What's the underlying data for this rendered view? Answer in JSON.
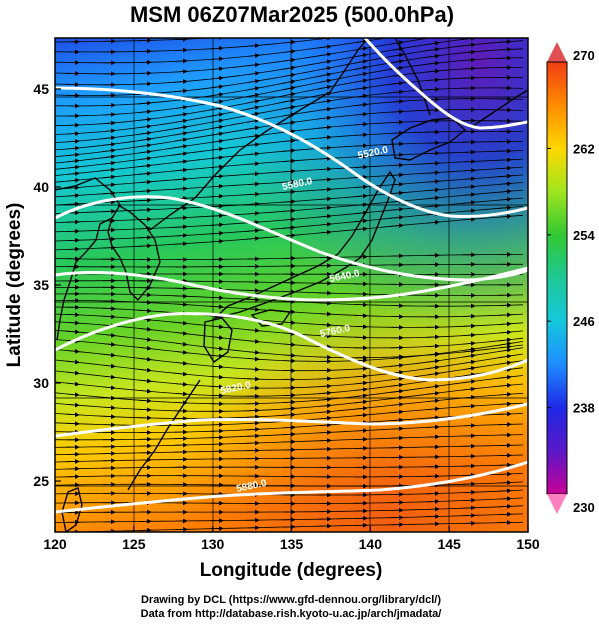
{
  "title": "MSM 06Z07Mar2025 (500.0hPa)",
  "xlabel": "Longitude (degrees)",
  "ylabel": "Latitude  (degrees)",
  "footer": {
    "line1": "Drawing by DCL (https://www.gfd-dennou.org/library/dcl/)",
    "line2": "Data from http://database.rish.kyoto-u.ac.jp/arch/jmadata/"
  },
  "map": {
    "lon_range": [
      120,
      150
    ],
    "lat_range": [
      22.4,
      47.6
    ],
    "x_ticks": [
      120,
      125,
      130,
      135,
      140,
      145,
      150
    ],
    "x_tick_labels": [
      "120",
      "125",
      "130",
      "135",
      "140",
      "145",
      "150"
    ],
    "y_ticks": [
      25,
      30,
      35,
      40,
      45
    ],
    "y_tick_labels": [
      "25",
      "30",
      "35",
      "40",
      "45"
    ],
    "grid": true
  },
  "colorbar": {
    "min": 230,
    "max": 270,
    "ticks": [
      230,
      238,
      246,
      254,
      262,
      270
    ],
    "tick_labels": [
      "230",
      "238",
      "246",
      "254",
      "262",
      "270"
    ],
    "arrow_color": "#e05050",
    "bottom_arrow_color": "#ff80c0"
  },
  "contours": [
    {
      "label": "5880.0",
      "label_lon": 132.5,
      "label_lat": 24.6
    },
    {
      "label": "5820.0",
      "label_lon": 131.5,
      "label_lat": 29.6
    },
    {
      "label": "5760.0",
      "label_lon": 137.8,
      "label_lat": 32.5
    },
    {
      "label": "5640.0",
      "label_lon": 138.4,
      "label_lat": 35.3
    },
    {
      "label": "5580.0",
      "label_lon": 135.4,
      "label_lat": 40.0
    },
    {
      "label": "5520.0",
      "label_lon": 140.2,
      "label_lat": 41.6
    }
  ],
  "contour_color": "#ffffff"
}
